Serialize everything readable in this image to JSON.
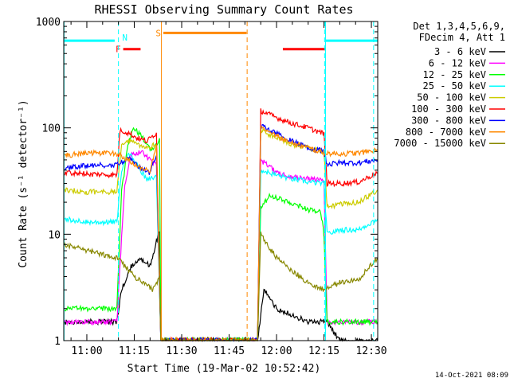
{
  "chart_data": {
    "type": "line",
    "title": "RHESSI Observing Summary Count Rates",
    "xlabel": "Start Time (19-Mar-02 10:52:42)",
    "ylabel": "Count Rate (s⁻¹ detector⁻¹)",
    "x_unit": "minutes after 11:00",
    "xlim": [
      -7.3,
      92
    ],
    "ylim": [
      1,
      1000
    ],
    "yscale": "log",
    "grid": false,
    "x_ticks": [
      {
        "value": 0,
        "label": "11:00"
      },
      {
        "value": 15,
        "label": "11:15"
      },
      {
        "value": 30,
        "label": "11:30"
      },
      {
        "value": 45,
        "label": "11:45"
      },
      {
        "value": 60,
        "label": "12:00"
      },
      {
        "value": 75,
        "label": "12:15"
      },
      {
        "value": 90,
        "label": "12:30"
      }
    ],
    "y_ticks": [
      {
        "value": 1,
        "label": "1"
      },
      {
        "value": 10,
        "label": "10"
      },
      {
        "value": 100,
        "label": "100"
      },
      {
        "value": 1000,
        "label": "1000"
      }
    ],
    "legend": {
      "placement": "right",
      "header": [
        "Det 1,3,4,5,6,9,",
        "FDecim 4, Att 1"
      ]
    },
    "series": [
      {
        "name": "3 - 6 keV",
        "color": "#000000",
        "points": [
          [
            -7,
            1.5
          ],
          [
            9.5,
            1.5
          ],
          [
            11,
            3
          ],
          [
            14,
            5
          ],
          [
            17,
            6
          ],
          [
            20,
            5
          ],
          [
            23,
            11
          ],
          [
            23.4,
            1
          ],
          [
            54,
            1
          ],
          [
            56,
            3
          ],
          [
            60,
            2
          ],
          [
            70,
            1.5
          ],
          [
            76,
            1.5
          ],
          [
            80,
            1
          ],
          [
            92,
            1
          ]
        ]
      },
      {
        "name": "6 - 12 keV",
        "color": "#ff00ff",
        "points": [
          [
            -7,
            1.5
          ],
          [
            9.5,
            1.5
          ],
          [
            10.5,
            5
          ],
          [
            12,
            30
          ],
          [
            14,
            55
          ],
          [
            17,
            60
          ],
          [
            20,
            50
          ],
          [
            22,
            45
          ],
          [
            23.4,
            1
          ],
          [
            54,
            1
          ],
          [
            55,
            50
          ],
          [
            60,
            38
          ],
          [
            65,
            35
          ],
          [
            70,
            33
          ],
          [
            75,
            32
          ],
          [
            76,
            1.5
          ],
          [
            80,
            1.5
          ],
          [
            92,
            1.5
          ]
        ]
      },
      {
        "name": "12 - 25 keV",
        "color": "#00ff00",
        "points": [
          [
            -7,
            2
          ],
          [
            9.5,
            2
          ],
          [
            11,
            25
          ],
          [
            13,
            70
          ],
          [
            15,
            100
          ],
          [
            17,
            85
          ],
          [
            19,
            70
          ],
          [
            21,
            60
          ],
          [
            23,
            80
          ],
          [
            23.4,
            1
          ],
          [
            54,
            1
          ],
          [
            55,
            18
          ],
          [
            58,
            23
          ],
          [
            62,
            21
          ],
          [
            66,
            19
          ],
          [
            70,
            17
          ],
          [
            74,
            16
          ],
          [
            75,
            10
          ],
          [
            76,
            1.5
          ],
          [
            80,
            1.5
          ],
          [
            92,
            1.5
          ]
        ]
      },
      {
        "name": "25 - 50 keV",
        "color": "#00ffff",
        "points": [
          [
            -7,
            14
          ],
          [
            0,
            13
          ],
          [
            9.5,
            13
          ],
          [
            11,
            40
          ],
          [
            13,
            60
          ],
          [
            16,
            45
          ],
          [
            19,
            32
          ],
          [
            22,
            35
          ],
          [
            23.4,
            1
          ],
          [
            54,
            1
          ],
          [
            55,
            40
          ],
          [
            60,
            36
          ],
          [
            65,
            33
          ],
          [
            70,
            31
          ],
          [
            75,
            30
          ],
          [
            76,
            10
          ],
          [
            80,
            11
          ],
          [
            86,
            11
          ],
          [
            92,
            14
          ]
        ]
      },
      {
        "name": "50 - 100 keV",
        "color": "#cccc00",
        "points": [
          [
            -7,
            26
          ],
          [
            0,
            25
          ],
          [
            9.5,
            25
          ],
          [
            11,
            70
          ],
          [
            13,
            75
          ],
          [
            16,
            70
          ],
          [
            19,
            65
          ],
          [
            22,
            70
          ],
          [
            23.4,
            1
          ],
          [
            54,
            1
          ],
          [
            55,
            95
          ],
          [
            60,
            80
          ],
          [
            65,
            70
          ],
          [
            70,
            65
          ],
          [
            75,
            60
          ],
          [
            76,
            18
          ],
          [
            80,
            19
          ],
          [
            86,
            20
          ],
          [
            92,
            26
          ]
        ]
      },
      {
        "name": "100 - 300 keV",
        "color": "#ff0000",
        "points": [
          [
            -7,
            38
          ],
          [
            0,
            37
          ],
          [
            9.5,
            36
          ],
          [
            10.5,
            95
          ],
          [
            13,
            90
          ],
          [
            16,
            80
          ],
          [
            19,
            75
          ],
          [
            22,
            90
          ],
          [
            23.4,
            1
          ],
          [
            54,
            1
          ],
          [
            55,
            145
          ],
          [
            60,
            125
          ],
          [
            65,
            110
          ],
          [
            70,
            100
          ],
          [
            75,
            88
          ],
          [
            76,
            30
          ],
          [
            80,
            30
          ],
          [
            86,
            31
          ],
          [
            92,
            38
          ]
        ]
      },
      {
        "name": "300 - 800 keV",
        "color": "#0000ff",
        "points": [
          [
            -7,
            42
          ],
          [
            0,
            44
          ],
          [
            9.5,
            45
          ],
          [
            11,
            48
          ],
          [
            14,
            52
          ],
          [
            17,
            42
          ],
          [
            20,
            38
          ],
          [
            22,
            55
          ],
          [
            23.4,
            1
          ],
          [
            54,
            1
          ],
          [
            55,
            105
          ],
          [
            60,
            88
          ],
          [
            65,
            75
          ],
          [
            70,
            65
          ],
          [
            75,
            60
          ],
          [
            76,
            45
          ],
          [
            80,
            47
          ],
          [
            86,
            47
          ],
          [
            92,
            50
          ]
        ]
      },
      {
        "name": "800 - 7000 keV",
        "color": "#ff8800",
        "points": [
          [
            -7,
            55
          ],
          [
            0,
            58
          ],
          [
            9.5,
            57
          ],
          [
            12,
            52
          ],
          [
            15,
            45
          ],
          [
            18,
            40
          ],
          [
            20,
            40
          ],
          [
            22,
            70
          ],
          [
            23.4,
            1
          ],
          [
            54,
            1
          ],
          [
            55,
            100
          ],
          [
            60,
            85
          ],
          [
            65,
            72
          ],
          [
            70,
            65
          ],
          [
            75,
            58
          ],
          [
            80,
            57
          ],
          [
            86,
            58
          ],
          [
            92,
            62
          ]
        ]
      },
      {
        "name": "7000 - 15000 keV",
        "color": "#888800",
        "points": [
          [
            -7,
            8
          ],
          [
            0,
            7
          ],
          [
            9.5,
            6
          ],
          [
            12,
            5
          ],
          [
            15,
            4
          ],
          [
            18,
            3.5
          ],
          [
            21,
            3
          ],
          [
            23,
            4
          ],
          [
            23.4,
            1
          ],
          [
            54,
            1
          ],
          [
            55,
            10
          ],
          [
            60,
            6
          ],
          [
            65,
            4.5
          ],
          [
            70,
            3.5
          ],
          [
            75,
            3
          ],
          [
            80,
            3.5
          ],
          [
            86,
            3.8
          ],
          [
            92,
            6
          ]
        ]
      }
    ],
    "flags": [
      {
        "type": "segment",
        "label": "",
        "color": "#00ffff",
        "y": 660,
        "start": -7.3,
        "end": 8.8
      },
      {
        "type": "segment",
        "label": "F",
        "color": "#ff0000",
        "y": 550,
        "start": 11.5,
        "end": 17
      },
      {
        "type": "segment",
        "label": "S",
        "color": "#ff8800",
        "y": 780,
        "start": 24.2,
        "end": 50.5
      },
      {
        "type": "segment",
        "label": "",
        "color": "#ff0000",
        "y": 550,
        "start": 62,
        "end": 75.5
      },
      {
        "type": "segment",
        "label": "",
        "color": "#00ffff",
        "y": 660,
        "start": 75.5,
        "end": 92
      },
      {
        "type": "vline",
        "label": "N",
        "color": "#00ffff",
        "x": 10,
        "dashed": true
      },
      {
        "type": "vline",
        "label": "",
        "color": "#00ffff",
        "x": 75.2,
        "dashed": true
      },
      {
        "type": "vline",
        "label": "",
        "color": "#00ffff",
        "x": 90.7,
        "dashed": true
      },
      {
        "type": "vline",
        "label": "",
        "color": "#ff8800",
        "x": 23.6,
        "dashed": false
      },
      {
        "type": "vline",
        "label": "",
        "color": "#ff8800",
        "x": 50.7,
        "dashed": true
      },
      {
        "type": "vline",
        "label": "",
        "color": "#00ffff",
        "x": -7.2,
        "dashed": false
      },
      {
        "type": "vline",
        "label": "",
        "color": "#00ffff",
        "x": 75.5,
        "dashed": false
      }
    ]
  },
  "footer": {
    "timestamp": "14-Oct-2021 08:09"
  }
}
